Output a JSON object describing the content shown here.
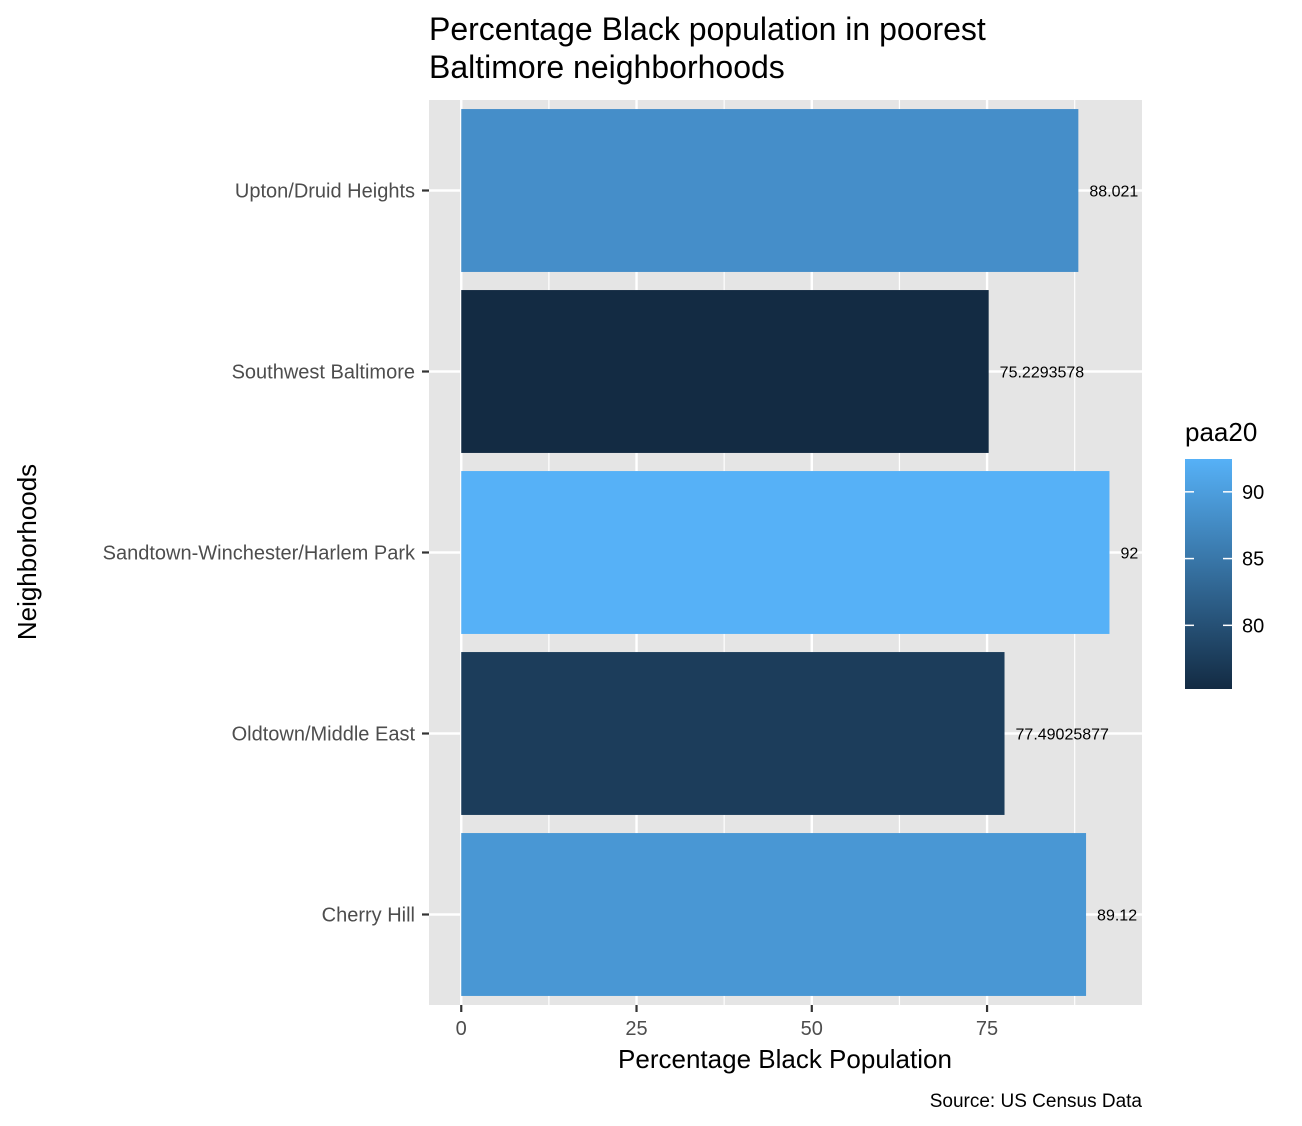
{
  "chart_data": {
    "type": "bar",
    "orientation": "horizontal",
    "title": "Percentage Black population in poorest Baltimore neighborhoods",
    "title_lines": [
      "Percentage Black population in poorest",
      "Baltimore neighborhoods"
    ],
    "xlabel": "Percentage Black Population",
    "ylabel": "Neighborhoods",
    "caption": "Source: US Census Data",
    "categories": [
      "Upton/Druid Heights",
      "Southwest Baltimore",
      "Sandtown-Winchester/Harlem Park",
      "Oldtown/Middle East",
      "Cherry Hill"
    ],
    "values": [
      88.02,
      75.23,
      92.46,
      77.49,
      89.12
    ],
    "data_labels": [
      "88.021",
      "75.2293578",
      "92",
      "77.49025877",
      "89.12"
    ],
    "xlim": [
      -4.6,
      97.1
    ],
    "x_ticks": [
      0,
      25,
      50,
      75
    ],
    "x_tick_labels": [
      "0",
      "25",
      "50",
      "75"
    ],
    "grid": true,
    "legend": {
      "title": "paa20",
      "placement": "right",
      "type": "colorbar",
      "range": [
        75.23,
        92.46
      ],
      "ticks": [
        80,
        85,
        90
      ],
      "tick_labels": [
        "80",
        "85",
        "90"
      ],
      "color_low": "#132B43",
      "color_high": "#56B1F7"
    },
    "colors": {
      "panel_bg": "#e5e5e5",
      "grid": "#ffffff",
      "text_dark": "#000000",
      "text_axis": "#4d4d4d"
    }
  }
}
